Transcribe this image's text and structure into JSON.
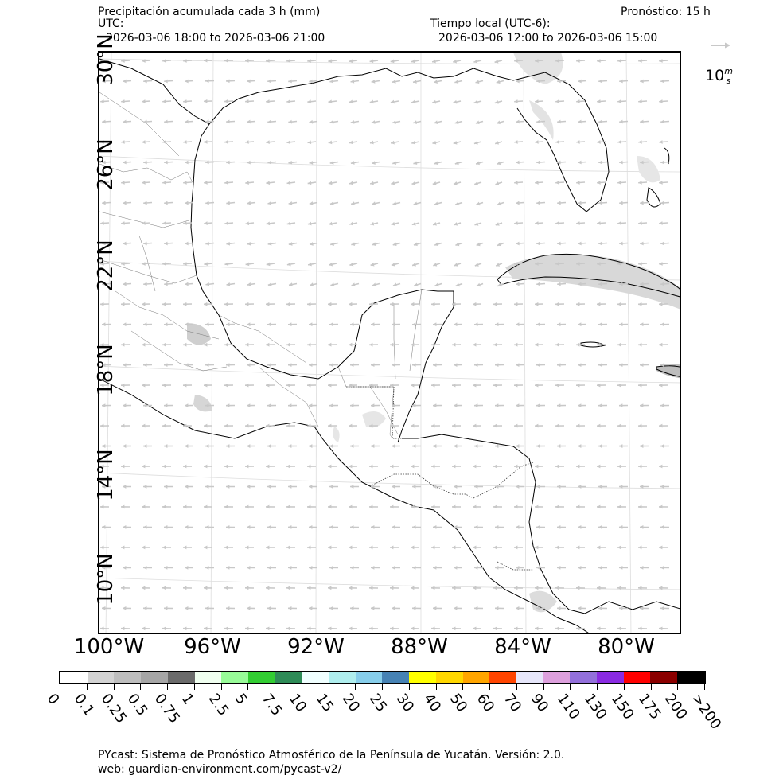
{
  "header": {
    "title": "Precipitación acumulada cada 3 h (mm)",
    "forecast": "Pronóstico: 15 h",
    "utc_label": "UTC:",
    "utc_range": "2026-03-06 18:00 to 2026-03-06 21:00",
    "local_label": "Tiempo local (UTC-6):",
    "local_range": "2026-03-06 12:00 to 2026-03-06 15:00"
  },
  "wind_reference": {
    "value": "10",
    "unit_num": "m",
    "unit_den": "s"
  },
  "map": {
    "lon_labels": [
      "100°W",
      "96°W",
      "92°W",
      "88°W",
      "84°W",
      "80°W"
    ],
    "lat_labels": [
      "30°N",
      "26°N",
      "22°N",
      "18°N",
      "14°N",
      "10°N"
    ],
    "colors": {
      "coast": "#000000",
      "borders": "#555555",
      "arrows": "#c8c8c8",
      "precip_light": "#d8d8d8",
      "precip_mid": "#bdbdbd",
      "grid": "#dddddd"
    }
  },
  "colorbar": {
    "colors": [
      "#ffffff",
      "#d3d3d3",
      "#bebebe",
      "#a6a6a6",
      "#6b6b6b",
      "#f0fff0",
      "#98fb98",
      "#32cd32",
      "#2e8b57",
      "#f0ffff",
      "#afeeee",
      "#87ceeb",
      "#4682b4",
      "#ffff00",
      "#ffd700",
      "#ffa500",
      "#ff4500",
      "#e6e6fa",
      "#dda0dd",
      "#9370db",
      "#8a2be2",
      "#ff0000",
      "#8b0000",
      "#000000"
    ],
    "labels": [
      "0",
      "0.1",
      "0.25",
      "0.5",
      "0.75",
      "1",
      "2.5",
      "5",
      "7.5",
      "10",
      "15",
      "20",
      "25",
      "30",
      "40",
      "50",
      "60",
      "70",
      "90",
      "110",
      "130",
      "150",
      "175",
      "200",
      ">200"
    ]
  },
  "footer": {
    "line1": "PYcast: Sistema de Pronóstico Atmosférico de la Península de Yucatán. Versión: 2.0.",
    "line2": "web: guardian-environment.com/pycast-v2/"
  }
}
